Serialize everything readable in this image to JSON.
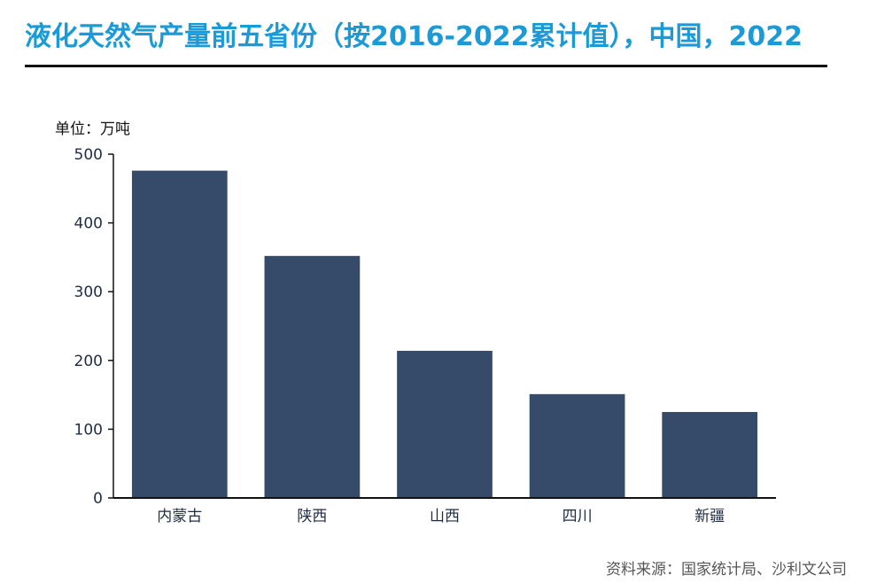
{
  "header": {
    "title": "液化天然气产量前五省份（按2016-2022累计值），中国，2022"
  },
  "unit_label": "单位：万吨",
  "source": "资料来源：国家统计局、沙利文公司",
  "colors": {
    "title": "#1a9ad6",
    "bar": "#364a69",
    "axis": "#111111"
  },
  "chart_data": {
    "type": "bar",
    "title": "液化天然气产量前五省份（按2016-2022累计值），中国，2022",
    "categories": [
      "内蒙古",
      "陕西",
      "山西",
      "四川",
      "新疆"
    ],
    "values": [
      476,
      352,
      214,
      151,
      125
    ],
    "ylim": [
      0,
      500
    ],
    "yticks": [
      0,
      100,
      200,
      300,
      400,
      500
    ],
    "xlabel": "",
    "ylabel": "单位：万吨",
    "grid": false,
    "legend": "none"
  }
}
